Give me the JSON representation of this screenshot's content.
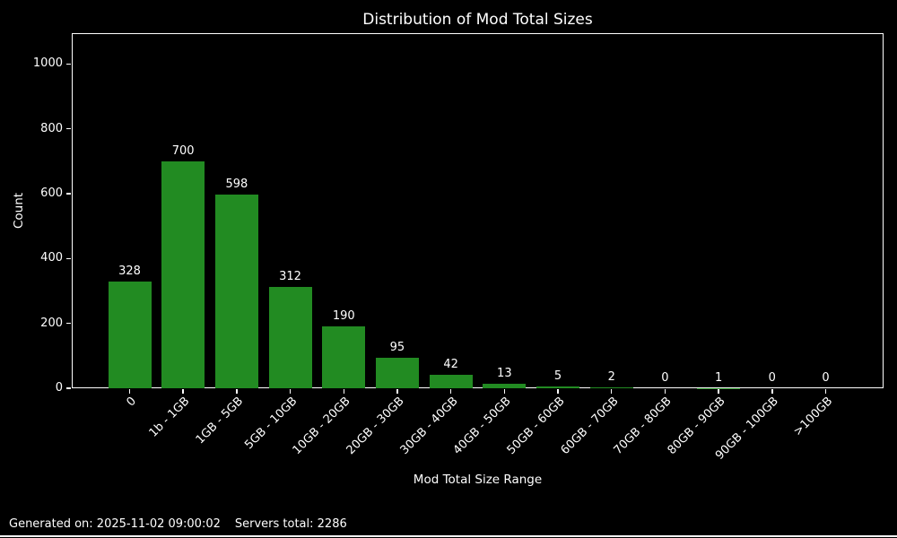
{
  "chart_data": {
    "type": "bar",
    "title": "Distribution of Mod Total Sizes",
    "xlabel": "Mod Total Size Range",
    "ylabel": "Count",
    "categories": [
      "0",
      "1b - 1GB",
      "1GB - 5GB",
      "5GB - 10GB",
      "10GB - 20GB",
      "20GB - 30GB",
      "30GB - 40GB",
      "40GB - 50GB",
      "50GB - 60GB",
      "60GB - 70GB",
      "70GB - 80GB",
      "80GB - 90GB",
      "90GB - 100GB",
      ">100GB"
    ],
    "values": [
      328,
      700,
      598,
      312,
      190,
      95,
      42,
      13,
      5,
      2,
      0,
      1,
      0,
      0
    ],
    "yticks": [
      0,
      200,
      400,
      600,
      800,
      1000
    ],
    "ylim": [
      0,
      1095
    ],
    "grid": false,
    "legend": null,
    "bar_color": "#228B22",
    "background_color": "#000000",
    "text_color": "#ffffff",
    "frame_color": "#ffffff"
  },
  "footer": {
    "generated": "Generated on: 2025-11-02 09:00:02",
    "servers_total": "Servers total: 2286"
  }
}
